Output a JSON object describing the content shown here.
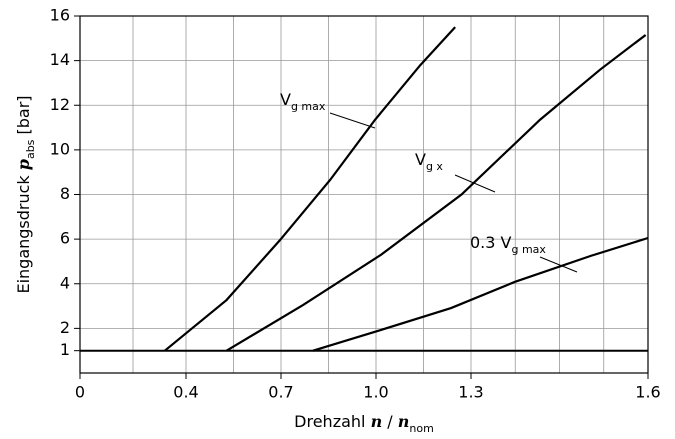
{
  "chart_data": {
    "type": "line",
    "xlabel": [
      {
        "text": "Drehzahl "
      },
      {
        "text": "n",
        "italic": true
      },
      {
        "text": " / "
      },
      {
        "text": "n",
        "italic": true
      },
      {
        "text": "nom",
        "sub": true
      }
    ],
    "ylabel": [
      {
        "text": "Eingangsdruck "
      },
      {
        "text": "p",
        "italic": true
      },
      {
        "text": "abs",
        "sub": true
      },
      {
        "text": " [bar]"
      }
    ],
    "xlim": [
      0,
      1.6
    ],
    "xticks": [
      0,
      0.4,
      0.7,
      {
        "value": 1.0,
        "label": "1.0"
      },
      1.3,
      1.6
    ],
    "ylim": [
      0,
      16
    ],
    "yticks": [
      1,
      2,
      4,
      6,
      8,
      10,
      12,
      14,
      16
    ],
    "grid": true,
    "series": [
      {
        "name": "V",
        "name_sub": "g max",
        "color": "#000000",
        "x": [
          0.32,
          0.528,
          0.697,
          0.855,
          0.997,
          1.14,
          1.25
        ],
        "values": [
          1,
          3.27,
          5.96,
          8.65,
          11.35,
          13.8,
          15.5
        ]
      },
      {
        "name": "V",
        "name_sub": "g x",
        "color": "#000000",
        "x": [
          0.528,
          0.77,
          1.016,
          1.27,
          1.417,
          1.519,
          1.596
        ],
        "values": [
          1,
          3.05,
          5.3,
          8.0,
          11.35,
          13.6,
          15.15
        ]
      },
      {
        "name": "0.3 V",
        "name_sub": "g max",
        "color": "#000000",
        "x": [
          0.801,
          1.016,
          1.237,
          1.374,
          1.503,
          1.6
        ],
        "values": [
          1,
          1.93,
          2.91,
          4.08,
          5.25,
          6.05
        ]
      }
    ]
  }
}
